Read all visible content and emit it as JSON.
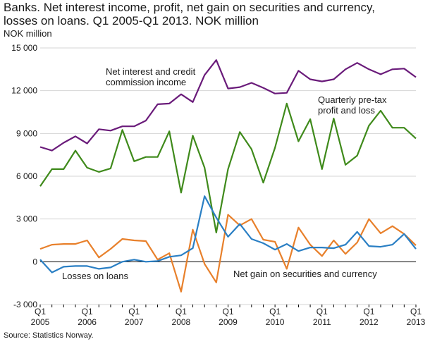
{
  "title_lines": [
    "Banks. Net interest income, profit, net gain on securities and currency,",
    "losses on loans.  Q1 2005-Q1 2013. NOK million"
  ],
  "source": "Source: Statistics Norway.",
  "chart_data": {
    "type": "line",
    "ylabel": "NOK million",
    "ylim": [
      -3000,
      15000
    ],
    "yticks": [
      -3000,
      0,
      3000,
      6000,
      9000,
      12000,
      15000
    ],
    "ytick_labels": [
      "-3 000",
      "0",
      "3 000",
      "6 000",
      "9 000",
      "12 000",
      "15 000"
    ],
    "xtick_labels": [
      {
        "q": "Q1",
        "year": "2005",
        "index": 0
      },
      {
        "q": "Q1",
        "year": "2006",
        "index": 4
      },
      {
        "q": "Q1",
        "year": "2007",
        "index": 8
      },
      {
        "q": "Q1",
        "year": "2008",
        "index": 12
      },
      {
        "q": "Q1",
        "year": "2009",
        "index": 16
      },
      {
        "q": "Q1",
        "year": "2010",
        "index": 20
      },
      {
        "q": "Q1",
        "year": "2011",
        "index": 24
      },
      {
        "q": "Q1",
        "year": "2012",
        "index": 28
      },
      {
        "q": "Q1",
        "year": "2013",
        "index": 32
      }
    ],
    "grid": true,
    "series": [
      {
        "name": "Net interest and credit commission income",
        "color": "#6a1b7a",
        "values": [
          8050,
          7800,
          8350,
          8800,
          8300,
          9300,
          9200,
          9500,
          9500,
          9900,
          11050,
          11100,
          11750,
          11200,
          13100,
          14150,
          12150,
          12250,
          12550,
          12200,
          11800,
          11850,
          13400,
          12800,
          12650,
          12800,
          13500,
          13950,
          13500,
          13150,
          13500,
          13550,
          12950
        ]
      },
      {
        "name": "Quarterly pre-tax profit and loss",
        "color": "#3f8a1b",
        "values": [
          5300,
          6500,
          6500,
          7800,
          6600,
          6300,
          6550,
          9250,
          7050,
          7350,
          7350,
          9150,
          4850,
          8850,
          6600,
          2050,
          6500,
          9100,
          7900,
          5550,
          8000,
          11100,
          8450,
          10000,
          6500,
          10050,
          6800,
          7450,
          9550,
          10600,
          9400,
          9400,
          8650
        ]
      },
      {
        "name": "Net gain on securities and currency",
        "color": "#e8802b",
        "values": [
          900,
          1200,
          1250,
          1250,
          1500,
          300,
          900,
          1600,
          1500,
          1450,
          150,
          600,
          -2100,
          2250,
          -150,
          -1450,
          3300,
          2550,
          3000,
          1550,
          1400,
          -500,
          2400,
          1200,
          400,
          1500,
          550,
          1350,
          3000,
          2000,
          2500,
          1950,
          1150
        ]
      },
      {
        "name": "Losses on loans",
        "color": "#2a7fc4",
        "values": [
          150,
          -750,
          -350,
          -300,
          -300,
          -500,
          -400,
          0,
          150,
          0,
          50,
          350,
          450,
          950,
          4600,
          3100,
          1750,
          2650,
          1600,
          1300,
          850,
          1250,
          750,
          1000,
          1000,
          950,
          1200,
          2100,
          1100,
          1050,
          1200,
          1950,
          900
        ]
      }
    ],
    "annotations": [
      {
        "lines": [
          "Net interest and credit",
          "commission income"
        ]
      },
      {
        "lines": [
          "Quarterly pre-tax",
          "profit and loss"
        ]
      },
      {
        "lines": [
          "Losses on loans"
        ]
      },
      {
        "lines": [
          "Net gain on securities and currency"
        ]
      }
    ]
  }
}
